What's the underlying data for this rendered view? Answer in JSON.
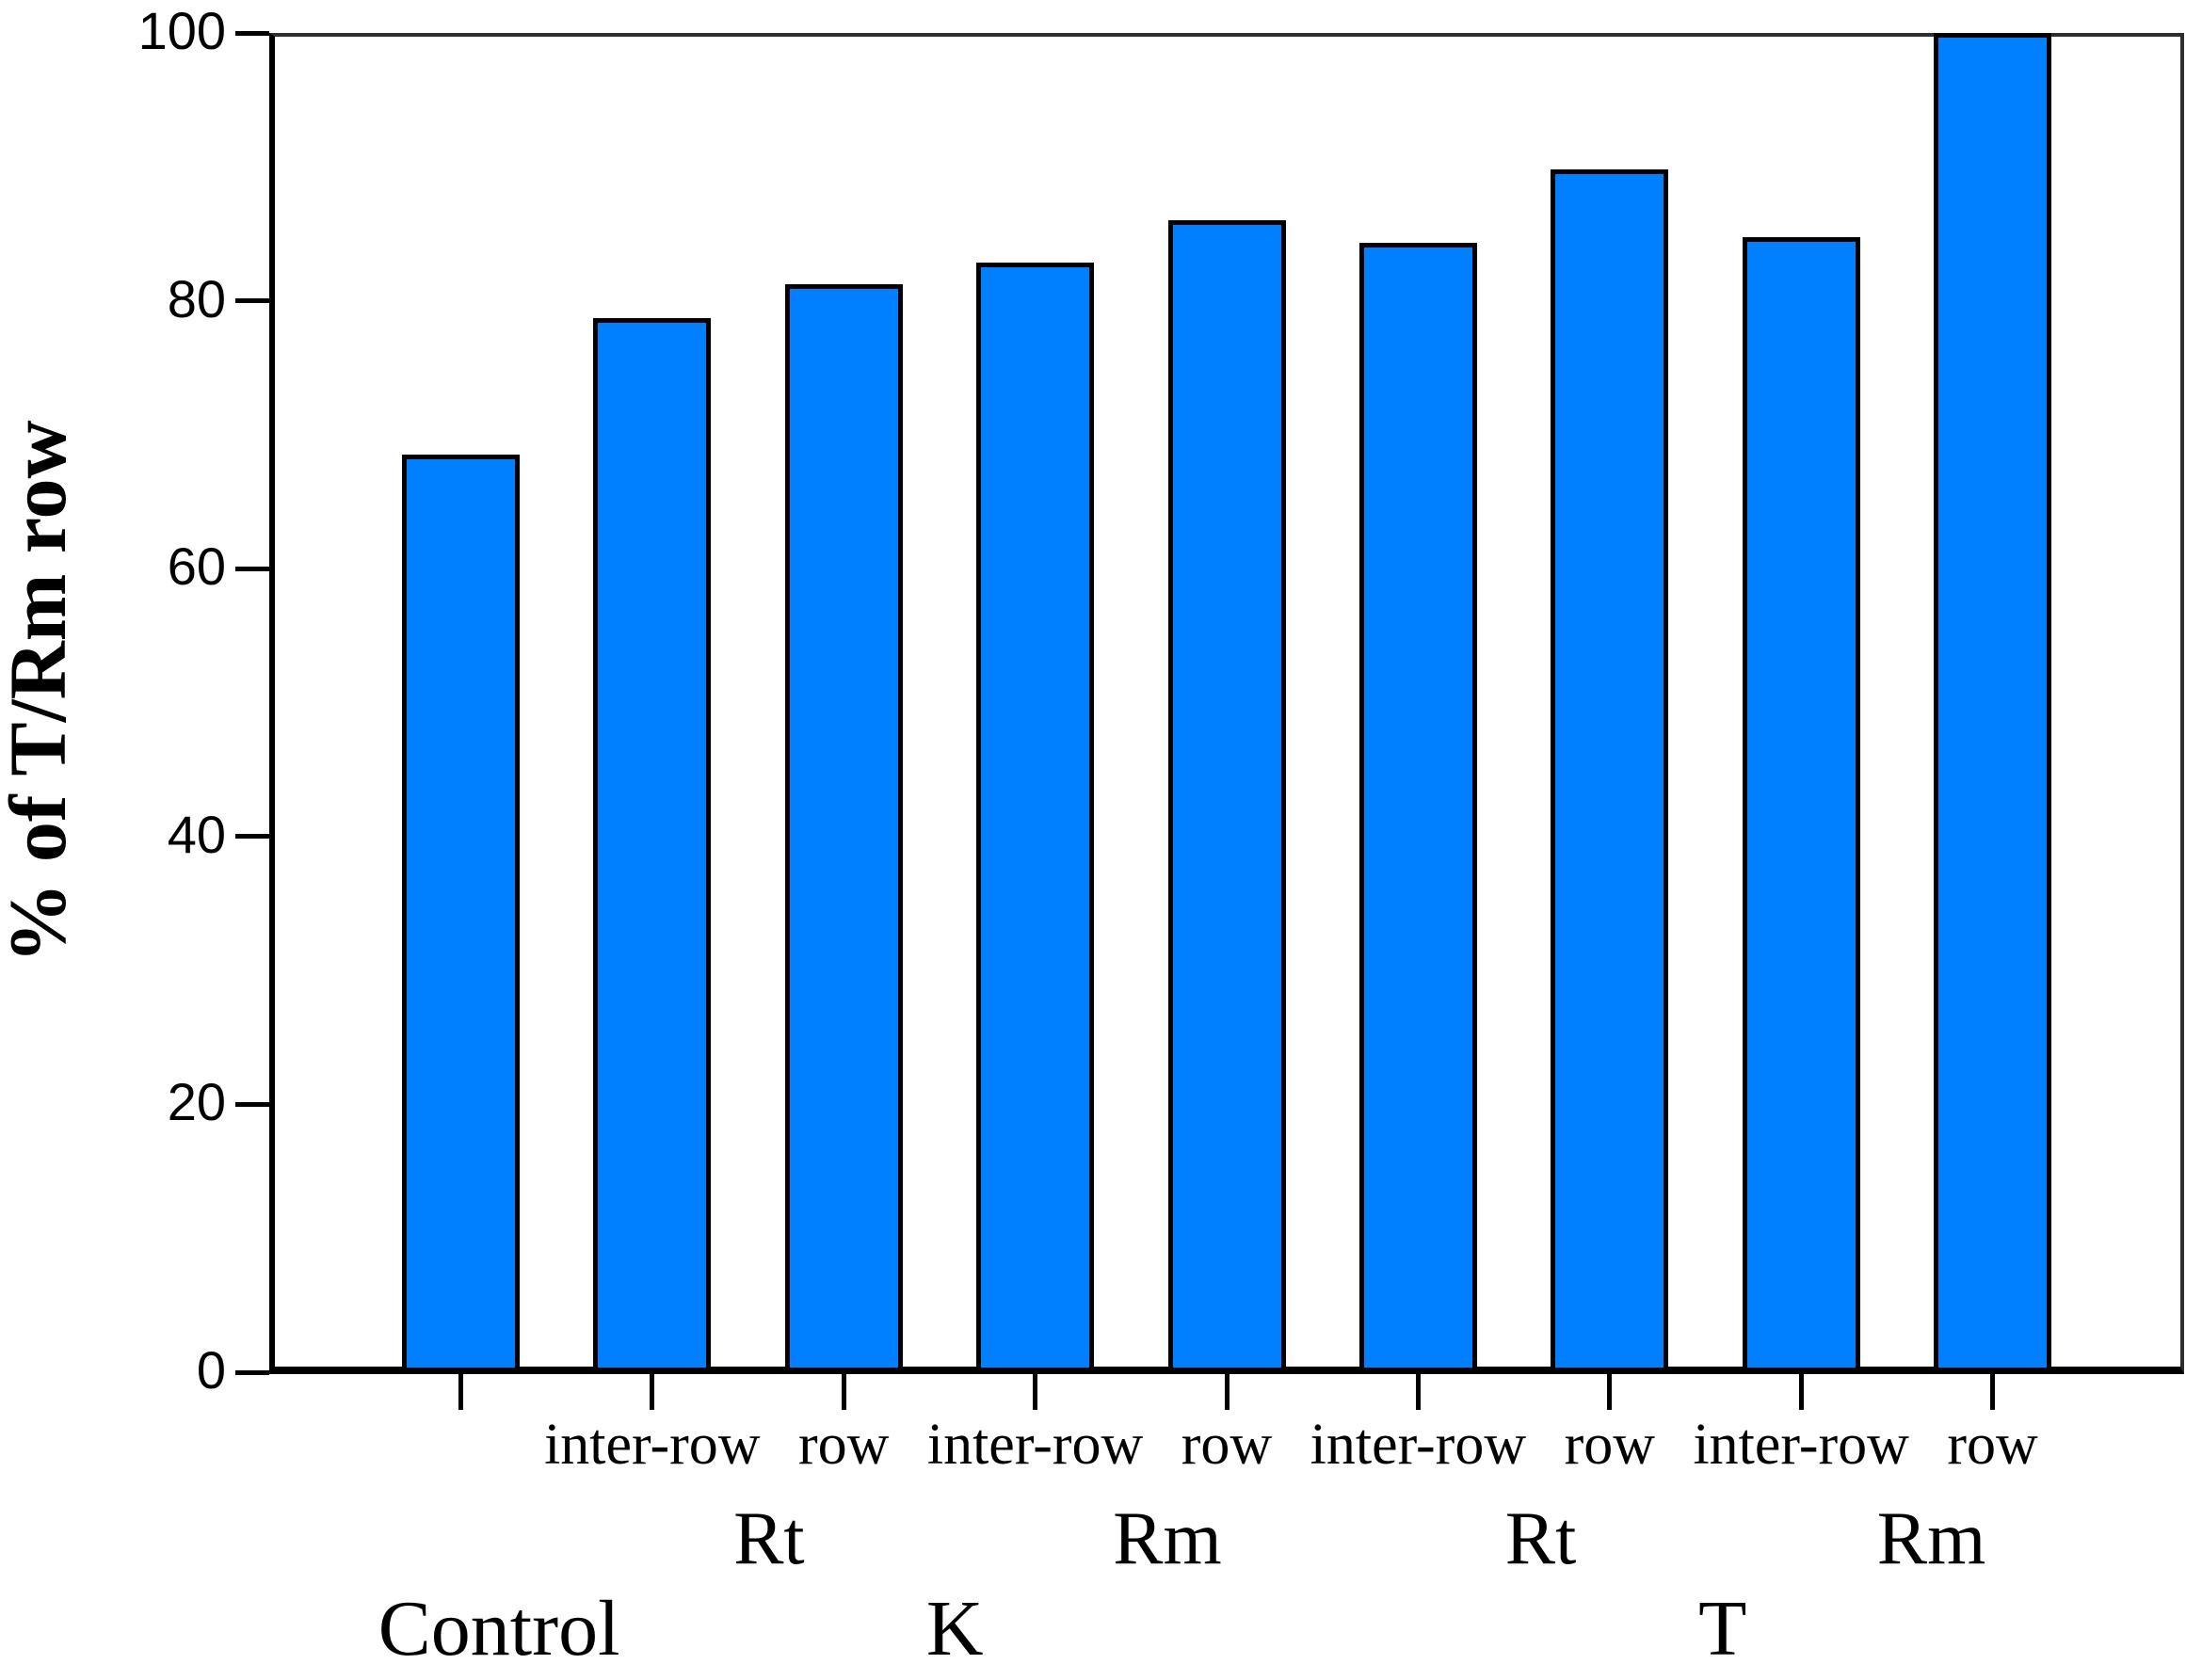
{
  "chart_data": {
    "type": "bar",
    "title": "",
    "xlabel": "",
    "ylabel": "% of T/Rm row",
    "ylim": [
      0,
      100
    ],
    "yticks": [
      0,
      20,
      40,
      60,
      80,
      100
    ],
    "ytick_labels": [
      "0",
      "20",
      "40",
      "60",
      "80",
      "100"
    ],
    "grid": false,
    "legend": false,
    "bar_color": "#0080FF",
    "bar_border_color": "#000000",
    "bars": [
      {
        "treatment": "Control",
        "group": "",
        "position": "",
        "value": 68.5
      },
      {
        "treatment": "K",
        "group": "Rt",
        "position": "inter-row",
        "value": 78.7
      },
      {
        "treatment": "K",
        "group": "Rt",
        "position": "row",
        "value": 81.2
      },
      {
        "treatment": "K",
        "group": "Rm",
        "position": "inter-row",
        "value": 82.8
      },
      {
        "treatment": "K",
        "group": "Rm",
        "position": "row",
        "value": 86.0
      },
      {
        "treatment": "T",
        "group": "Rt",
        "position": "inter-row",
        "value": 84.3
      },
      {
        "treatment": "T",
        "group": "Rt",
        "position": "row",
        "value": 89.8
      },
      {
        "treatment": "T",
        "group": "Rm",
        "position": "inter-row",
        "value": 84.7
      },
      {
        "treatment": "T",
        "group": "Rm",
        "position": "row",
        "value": 100
      }
    ],
    "group_labels": [
      {
        "text": "Rt",
        "pos": 2.61
      },
      {
        "text": "Rm",
        "pos": 4.69
      },
      {
        "text": "Rt",
        "pos": 6.64
      },
      {
        "text": "Rm",
        "pos": 8.68
      }
    ],
    "treatment_labels": [
      {
        "text": "Control",
        "pos": 1.2
      },
      {
        "text": "K",
        "pos": 3.58
      },
      {
        "text": "T",
        "pos": 7.59
      }
    ]
  }
}
